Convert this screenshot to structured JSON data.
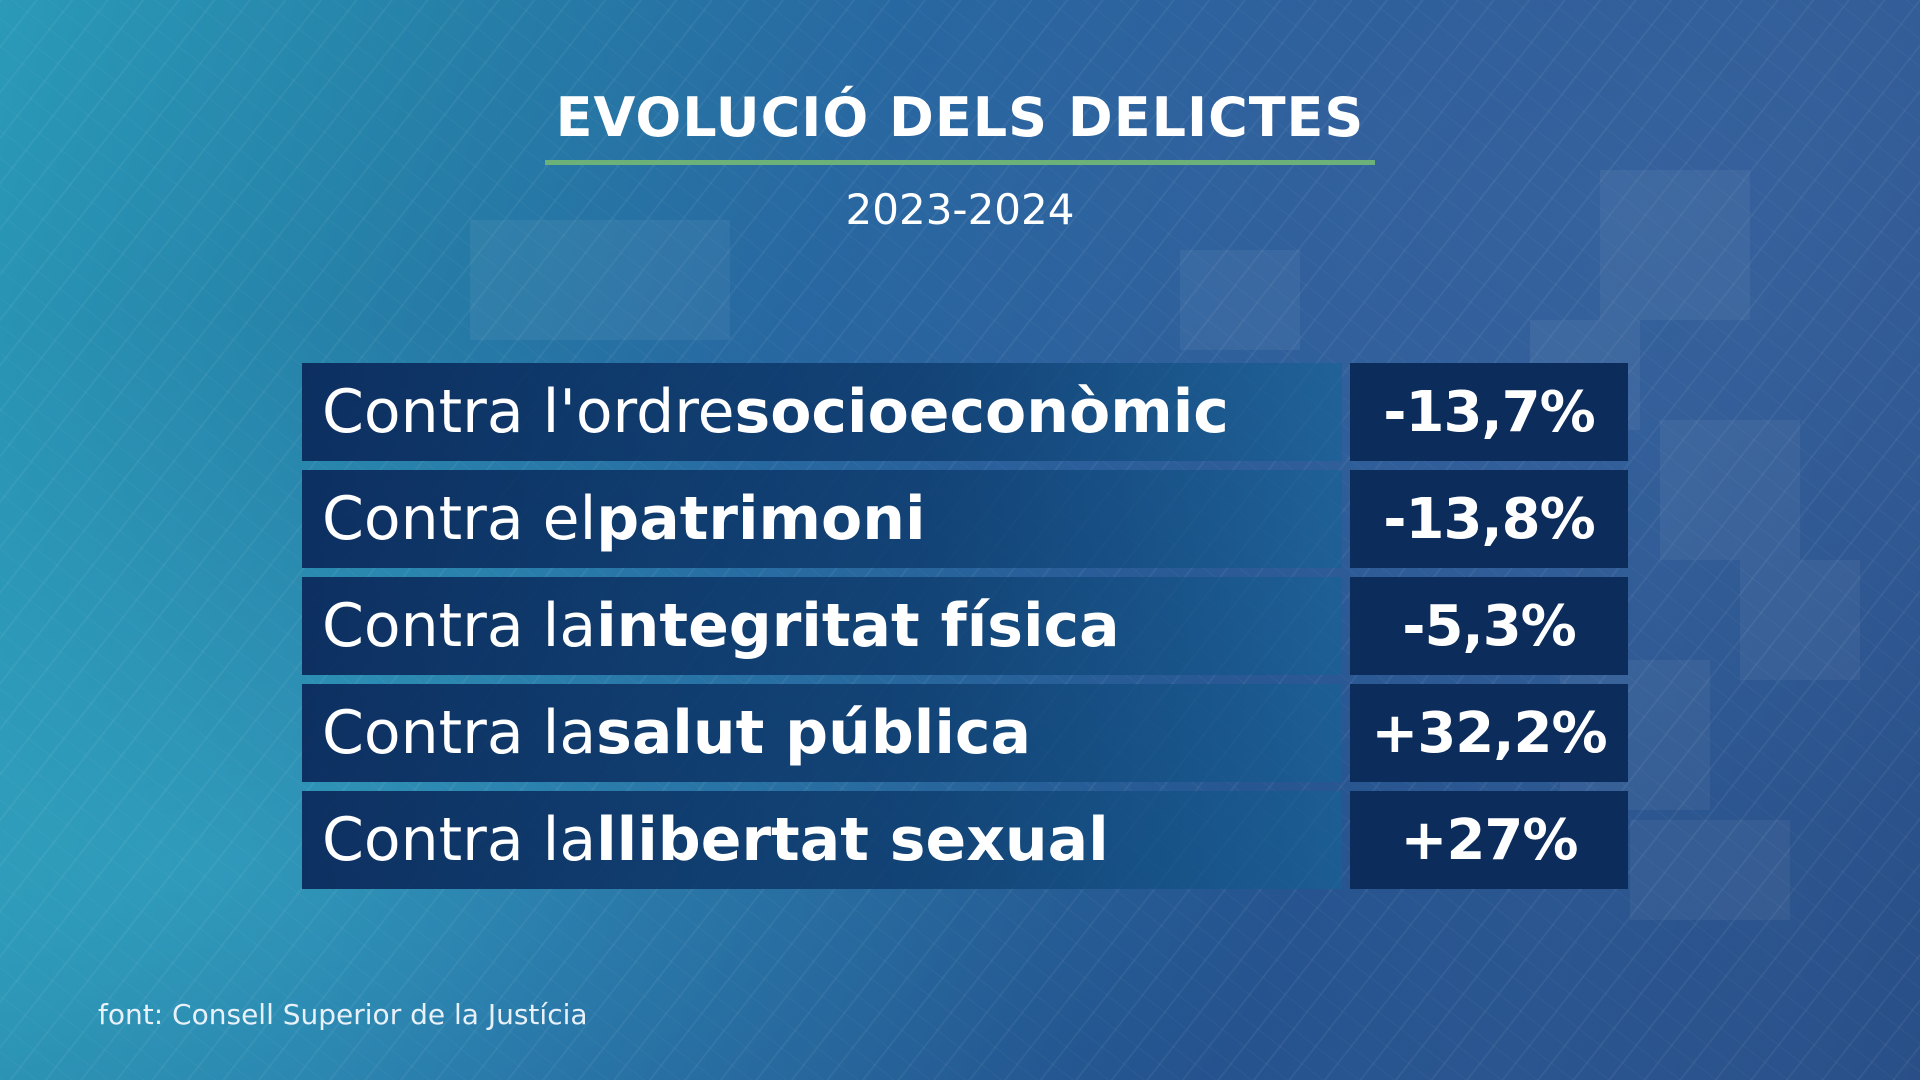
{
  "title": "EVOLUCIÓ DELS DELICTES",
  "subtitle": "2023-2024",
  "rows": [
    {
      "prefix": "Contra l'ordre ",
      "highlight": "socioeconòmic",
      "value": "-13,7%"
    },
    {
      "prefix": "Contra el ",
      "highlight": "patrimoni",
      "value": "-13,8%"
    },
    {
      "prefix": "Contra la ",
      "highlight": "integritat física",
      "value": "-5,3%"
    },
    {
      "prefix": "Contra la ",
      "highlight": "salut pública",
      "value": "+32,2%"
    },
    {
      "prefix": "Contra la ",
      "highlight": "llibertat sexual",
      "value": "+27%"
    }
  ],
  "source": "font: Consell Superior de la Justícia",
  "colors": {
    "accent_rule": "#6db17a",
    "value_cell": "#0c2c5c",
    "background_start": "#2a9ab8",
    "background_end": "#2a4f88"
  }
}
